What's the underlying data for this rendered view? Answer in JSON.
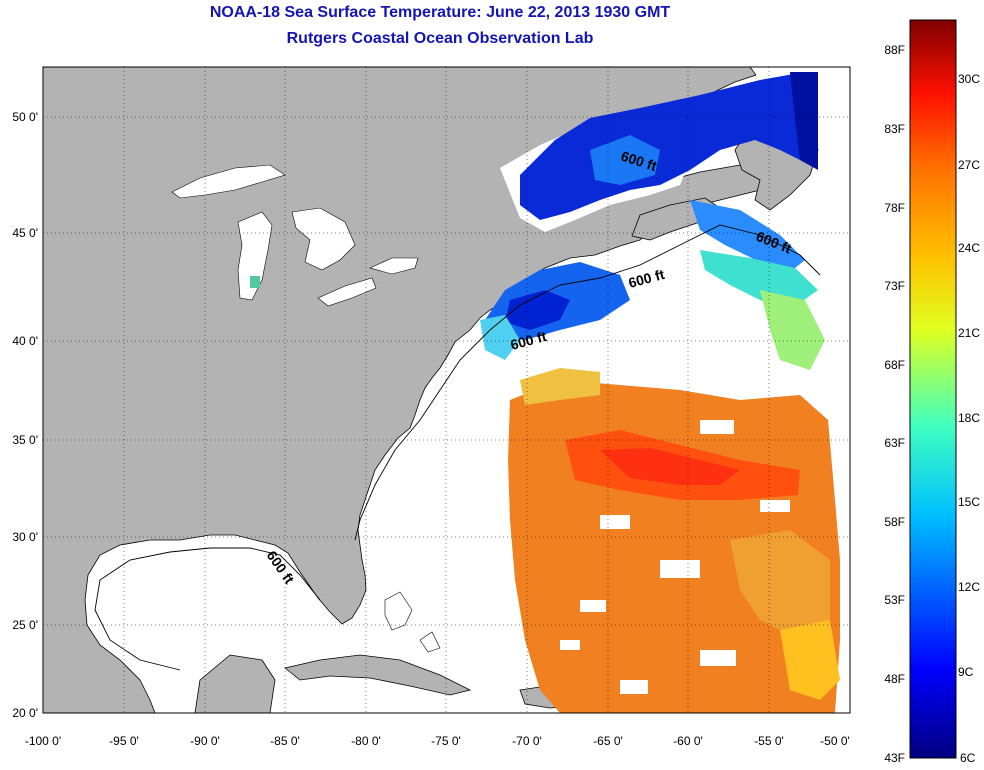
{
  "title": "NOAA-18 Sea Surface Temperature:  June 22, 2013 1930 GMT",
  "subtitle": "Rutgers Coastal Ocean Observation Lab",
  "map": {
    "lon_range": [
      -100,
      -50
    ],
    "lat_range": [
      20,
      52.5
    ],
    "grid": true,
    "land_color": "#b3b3b3",
    "no_data_color": "#ffffff",
    "x_ticks": [
      "-100 0'",
      "-95 0'",
      "-90 0'",
      "-85 0'",
      "-80 0'",
      "-75 0'",
      "-70 0'",
      "-65 0'",
      "-60 0'",
      "-55 0'",
      "-50 0'"
    ],
    "y_ticks": [
      "20 0'",
      "25 0'",
      "30 0'",
      "35 0'",
      "40 0'",
      "45 0'",
      "50 0'"
    ],
    "contour_labels": [
      "600 ft",
      "600 ft",
      "600 ft",
      "600 ft",
      "600 ft"
    ]
  },
  "colorbar": {
    "f_labels": [
      "88F",
      "83F",
      "78F",
      "73F",
      "68F",
      "63F",
      "58F",
      "53F",
      "48F",
      "43F"
    ],
    "c_labels": [
      "30C",
      "27C",
      "24C",
      "21C",
      "18C",
      "15C",
      "12C",
      "9C",
      "6C"
    ],
    "colors": [
      "#000080",
      "#0000ff",
      "#0080ff",
      "#00ffff",
      "#80ff80",
      "#ffff00",
      "#ff8000",
      "#ff0000",
      "#800000"
    ]
  }
}
